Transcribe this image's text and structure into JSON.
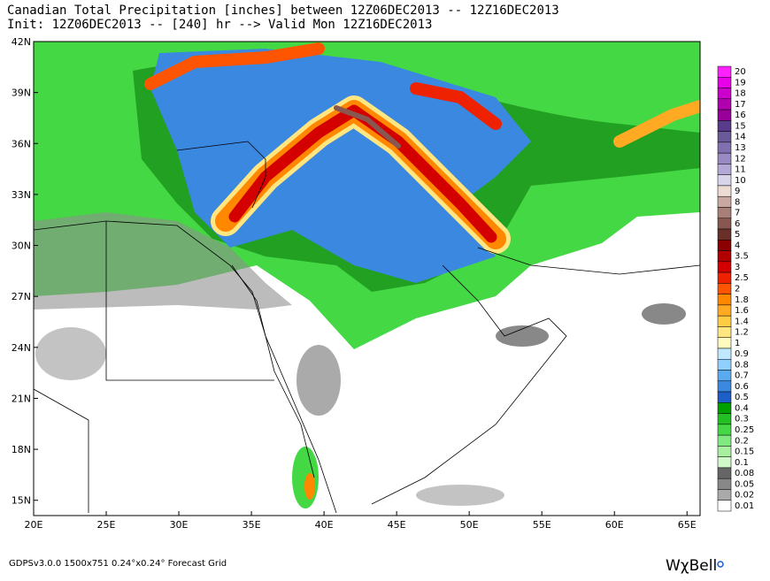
{
  "header": {
    "title": "Canadian Total Precipitation [inches] between 12Z06DEC2013 -- 12Z16DEC2013",
    "subtitle": "Init: 12Z06DEC2013 -- [240] hr --> Valid Mon 12Z16DEC2013"
  },
  "map": {
    "xlim": [
      20,
      65.9
    ],
    "ylim": [
      14.1,
      42
    ],
    "xticks": [
      {
        "value": 20,
        "label": "20E"
      },
      {
        "value": 25,
        "label": "25E"
      },
      {
        "value": 30,
        "label": "30E"
      },
      {
        "value": 35,
        "label": "35E"
      },
      {
        "value": 40,
        "label": "40E"
      },
      {
        "value": 45,
        "label": "45E"
      },
      {
        "value": 50,
        "label": "50E"
      },
      {
        "value": 55,
        "label": "55E"
      },
      {
        "value": 60,
        "label": "60E"
      },
      {
        "value": 65,
        "label": "65E"
      }
    ],
    "yticks": [
      {
        "value": 15,
        "label": "15N"
      },
      {
        "value": 18,
        "label": "18N"
      },
      {
        "value": 21,
        "label": "21N"
      },
      {
        "value": 24,
        "label": "24N"
      },
      {
        "value": 27,
        "label": "27N"
      },
      {
        "value": 30,
        "label": "30N"
      },
      {
        "value": 33,
        "label": "33N"
      },
      {
        "value": 36,
        "label": "36N"
      },
      {
        "value": 39,
        "label": "39N"
      },
      {
        "value": 42,
        "label": "42N"
      }
    ]
  },
  "colorbar": {
    "levels": [
      20,
      19,
      18,
      17,
      16,
      15,
      14,
      13,
      12,
      11,
      10,
      9,
      8,
      7,
      6,
      5,
      4,
      3.5,
      3,
      2.5,
      2,
      1.8,
      1.6,
      1.4,
      1.2,
      1,
      0.9,
      0.8,
      0.7,
      0.6,
      0.5,
      0.4,
      0.3,
      0.25,
      0.2,
      0.15,
      0.1,
      0.08,
      0.05,
      0.02,
      0.01
    ],
    "colors": [
      "#ff22ff",
      "#e800e8",
      "#cc00cc",
      "#b000b0",
      "#990099",
      "#5a3a8a",
      "#6a5a9a",
      "#8070b0",
      "#9a8ac4",
      "#b4a8d6",
      "#d8d4ea",
      "#ecdcd4",
      "#c8a8a0",
      "#a88078",
      "#885850",
      "#683028",
      "#8b0000",
      "#b00000",
      "#d40000",
      "#ee2200",
      "#ff5500",
      "#ff8800",
      "#ffaa22",
      "#ffcc44",
      "#ffe680",
      "#fffac0",
      "#c0e8ff",
      "#90d0ff",
      "#5aaaf0",
      "#3a88e0",
      "#1e5ec8",
      "#00a000",
      "#22c022",
      "#44d844",
      "#80ea80",
      "#a8f0a0",
      "#d0f8c8",
      "#666666",
      "#888888",
      "#aaaaaa",
      "#ffffff"
    ]
  },
  "footer": {
    "grid": "GDPSv3.0.0 1500x751 0.24°x0.24° Forecast Grid",
    "logo": "WχBell"
  }
}
